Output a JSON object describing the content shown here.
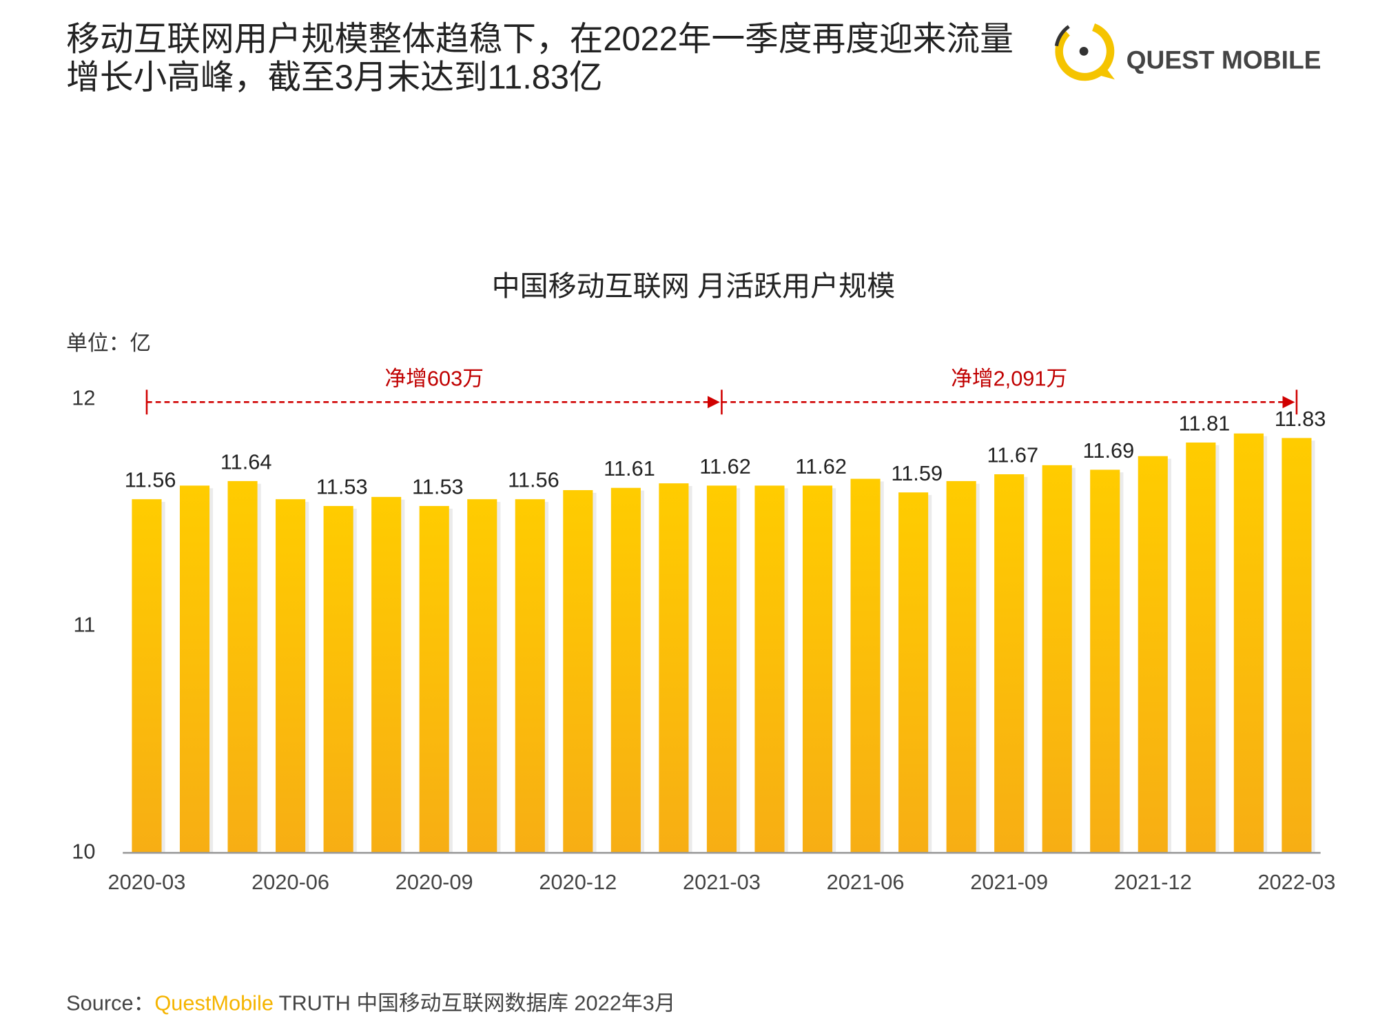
{
  "header": {
    "title_lines": [
      "移动互联网用户规模整体趋稳下，在2022年一季度再度迎来流量",
      "增长小高峰，截至3月末达到11.83亿"
    ],
    "logo": "QUEST MOBILE"
  },
  "chart_data": {
    "type": "bar",
    "title": "中国移动互联网 月活跃用户规模",
    "unit": "单位：亿",
    "categories": [
      "2020-03",
      null,
      null,
      "2020-06",
      null,
      null,
      "2020-09",
      null,
      null,
      "2020-12",
      null,
      null,
      "2021-03",
      null,
      null,
      "2021-06",
      null,
      null,
      "2021-09",
      null,
      null,
      "2021-12",
      null,
      null,
      "2022-03"
    ],
    "values": [
      11.56,
      11.62,
      11.64,
      11.56,
      11.53,
      11.57,
      11.53,
      11.56,
      11.56,
      11.6,
      11.61,
      11.63,
      11.62,
      11.62,
      11.62,
      11.65,
      11.59,
      11.64,
      11.67,
      11.71,
      11.69,
      11.75,
      11.81,
      11.85,
      11.83
    ],
    "value_labels": [
      "11.56",
      null,
      "11.64",
      null,
      "11.53",
      null,
      "11.53",
      null,
      "11.56",
      null,
      "11.61",
      null,
      "11.62",
      null,
      "11.62",
      null,
      "11.59",
      null,
      "11.67",
      null,
      "11.69",
      null,
      "11.81",
      null,
      "11.83"
    ],
    "color": "#FFC808",
    "ylim": [
      10,
      12
    ],
    "yticks": [
      10,
      11,
      12
    ],
    "grid": false,
    "annotations": [
      "净增603万",
      "净增2,091万"
    ]
  },
  "source": {
    "prefix": "Source：",
    "brand": "QuestMobile",
    "rest": "TRUTH 中国移动互联网数据库 2022年3月"
  }
}
